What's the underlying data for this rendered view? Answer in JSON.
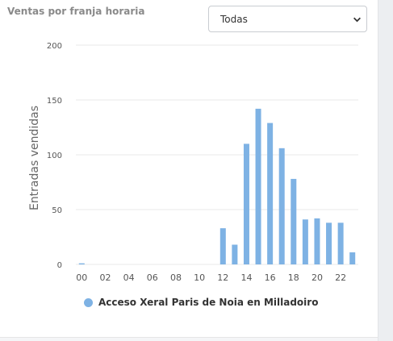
{
  "widget": {
    "title": "Ventas por franja horaria",
    "filter": {
      "selected": "Todas"
    }
  },
  "colors": {
    "bar": "#7eb2e4",
    "grid": "#e8e8e8",
    "axis_text": "#555555"
  },
  "icons": {
    "dropdown": "chevron-down-icon"
  },
  "chart_data": {
    "type": "bar",
    "ylabel": "Entradas vendidas",
    "xlabel": "",
    "ylim": [
      0,
      200
    ],
    "yticks": [
      0,
      50,
      100,
      150,
      200
    ],
    "categories": [
      "00",
      "01",
      "02",
      "03",
      "04",
      "05",
      "06",
      "07",
      "08",
      "09",
      "10",
      "11",
      "12",
      "13",
      "14",
      "15",
      "16",
      "17",
      "18",
      "19",
      "20",
      "21",
      "22",
      "23"
    ],
    "xtick_labels": [
      "00",
      "02",
      "04",
      "06",
      "08",
      "10",
      "12",
      "14",
      "16",
      "18",
      "20",
      "22"
    ],
    "series": [
      {
        "name": "Acceso Xeral Paris de Noia en Milladoiro",
        "values": [
          1,
          0,
          0,
          0,
          0,
          0,
          0,
          0,
          0,
          0,
          0,
          0,
          33,
          18,
          110,
          142,
          129,
          106,
          78,
          41,
          42,
          38,
          38,
          11
        ]
      }
    ],
    "grid": true,
    "legend": "bottom-left"
  }
}
